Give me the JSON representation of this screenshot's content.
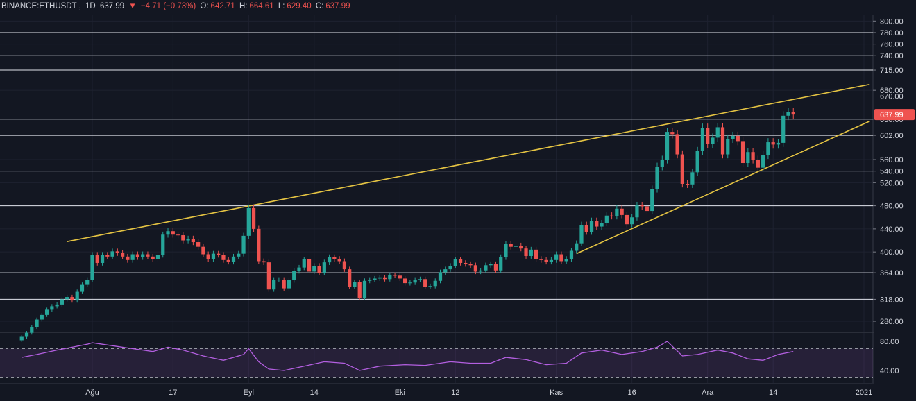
{
  "legend": {
    "symbol": "BINANCE:ETHUSDT",
    "interval": "1D",
    "last": "637.99",
    "change_icon": "down-triangle-icon",
    "change": "−4.71 (−0.73%)",
    "o_label": "O:",
    "o": "642.71",
    "h_label": "H:",
    "h": "664.61",
    "l_label": "L:",
    "l": "629.40",
    "c_label": "C:",
    "c": "637.99"
  },
  "colors": {
    "background": "#131722",
    "up": "#26a69a",
    "down": "#ef5350",
    "trendline": "#e5c443",
    "level_line": "#e0e3eb",
    "rsi": "#b35fe0"
  },
  "chart_data": [
    {
      "type": "candlestick",
      "symbol": "BINANCE:ETHUSDT",
      "interval": "1D",
      "price_axis": {
        "ticks": [
          280,
          318,
          364,
          400,
          440,
          480,
          520,
          540,
          560,
          602,
          630,
          670,
          680,
          715,
          740,
          760,
          780,
          800
        ],
        "tick_labels": [
          "280.00",
          "318.00",
          "364.00",
          "400.00",
          "440.00",
          "480.00",
          "520.00",
          "540.00",
          "560.00",
          "602.00",
          "630.00",
          "670.00",
          "680.00",
          "715.00",
          "740.00",
          "760.00",
          "780.00",
          "800.00"
        ],
        "range": [
          262,
          810
        ]
      },
      "x_axis": {
        "labels": [
          "Ağu",
          "17",
          "Eyl",
          "14",
          "Eki",
          "12",
          "Kas",
          "16",
          "Ara",
          "14",
          "2021"
        ],
        "dates": [
          "2020-08-01",
          "2020-08-17",
          "2020-09-01",
          "2020-09-14",
          "2020-10-01",
          "2020-10-12",
          "2020-11-01",
          "2020-11-16",
          "2020-12-01",
          "2020-12-14",
          "2021-01-01"
        ]
      },
      "horizontal_levels": [
        318,
        364,
        480,
        540,
        602,
        630,
        670,
        715,
        740,
        780
      ],
      "last_price_label": "637.99",
      "trendlines": [
        {
          "from": [
            "2020-07-27",
            418
          ],
          "to": [
            "2021-01-02",
            690
          ]
        },
        {
          "from": [
            "2020-11-05",
            397
          ],
          "to": [
            "2021-01-02",
            626
          ]
        }
      ],
      "close": [
        {
          "date": "2020-07-18",
          "value": 253
        },
        {
          "date": "2020-07-19",
          "value": 260
        },
        {
          "date": "2020-07-20",
          "value": 270
        },
        {
          "date": "2020-07-21",
          "value": 283
        },
        {
          "date": "2020-07-22",
          "value": 291
        },
        {
          "date": "2020-07-23",
          "value": 300
        },
        {
          "date": "2020-07-24",
          "value": 306
        },
        {
          "date": "2020-07-25",
          "value": 309
        },
        {
          "date": "2020-07-26",
          "value": 318
        },
        {
          "date": "2020-07-27",
          "value": 322
        },
        {
          "date": "2020-07-28",
          "value": 316
        },
        {
          "date": "2020-07-29",
          "value": 331
        },
        {
          "date": "2020-07-30",
          "value": 343
        },
        {
          "date": "2020-07-31",
          "value": 352
        },
        {
          "date": "2020-08-01",
          "value": 395
        },
        {
          "date": "2020-08-02",
          "value": 381
        },
        {
          "date": "2020-08-03",
          "value": 395
        },
        {
          "date": "2020-08-04",
          "value": 392
        },
        {
          "date": "2020-08-05",
          "value": 401
        },
        {
          "date": "2020-08-06",
          "value": 398
        },
        {
          "date": "2020-08-07",
          "value": 392
        },
        {
          "date": "2020-08-08",
          "value": 386
        },
        {
          "date": "2020-08-09",
          "value": 396
        },
        {
          "date": "2020-08-10",
          "value": 391
        },
        {
          "date": "2020-08-11",
          "value": 396
        },
        {
          "date": "2020-08-12",
          "value": 392
        },
        {
          "date": "2020-08-13",
          "value": 388
        },
        {
          "date": "2020-08-14",
          "value": 395
        },
        {
          "date": "2020-08-15",
          "value": 430
        },
        {
          "date": "2020-08-16",
          "value": 436
        },
        {
          "date": "2020-08-17",
          "value": 430
        },
        {
          "date": "2020-08-18",
          "value": 429
        },
        {
          "date": "2020-08-19",
          "value": 420
        },
        {
          "date": "2020-08-20",
          "value": 423
        },
        {
          "date": "2020-08-21",
          "value": 417
        },
        {
          "date": "2020-08-22",
          "value": 409
        },
        {
          "date": "2020-08-23",
          "value": 396
        },
        {
          "date": "2020-08-24",
          "value": 388
        },
        {
          "date": "2020-08-25",
          "value": 397
        },
        {
          "date": "2020-08-26",
          "value": 395
        },
        {
          "date": "2020-08-27",
          "value": 386
        },
        {
          "date": "2020-08-28",
          "value": 383
        },
        {
          "date": "2020-08-29",
          "value": 392
        },
        {
          "date": "2020-08-30",
          "value": 397
        },
        {
          "date": "2020-08-31",
          "value": 428
        },
        {
          "date": "2020-09-01",
          "value": 476
        },
        {
          "date": "2020-09-02",
          "value": 440
        },
        {
          "date": "2020-09-03",
          "value": 384
        },
        {
          "date": "2020-09-04",
          "value": 382
        },
        {
          "date": "2020-09-05",
          "value": 335
        },
        {
          "date": "2020-09-06",
          "value": 352
        },
        {
          "date": "2020-09-07",
          "value": 352
        },
        {
          "date": "2020-09-08",
          "value": 337
        },
        {
          "date": "2020-09-09",
          "value": 351
        },
        {
          "date": "2020-09-10",
          "value": 367
        },
        {
          "date": "2020-09-11",
          "value": 373
        },
        {
          "date": "2020-09-12",
          "value": 387
        },
        {
          "date": "2020-09-13",
          "value": 366
        },
        {
          "date": "2020-09-14",
          "value": 376
        },
        {
          "date": "2020-09-15",
          "value": 364
        },
        {
          "date": "2020-09-16",
          "value": 382
        },
        {
          "date": "2020-09-17",
          "value": 391
        },
        {
          "date": "2020-09-18",
          "value": 388
        },
        {
          "date": "2020-09-19",
          "value": 384
        },
        {
          "date": "2020-09-20",
          "value": 370
        },
        {
          "date": "2020-09-21",
          "value": 340
        },
        {
          "date": "2020-09-22",
          "value": 348
        },
        {
          "date": "2020-09-23",
          "value": 320
        },
        {
          "date": "2020-09-24",
          "value": 350
        },
        {
          "date": "2020-09-25",
          "value": 352
        },
        {
          "date": "2020-09-26",
          "value": 354
        },
        {
          "date": "2020-09-27",
          "value": 356
        },
        {
          "date": "2020-09-28",
          "value": 353
        },
        {
          "date": "2020-09-29",
          "value": 360
        },
        {
          "date": "2020-09-30",
          "value": 359
        },
        {
          "date": "2020-10-01",
          "value": 354
        },
        {
          "date": "2020-10-02",
          "value": 346
        },
        {
          "date": "2020-10-03",
          "value": 347
        },
        {
          "date": "2020-10-04",
          "value": 352
        },
        {
          "date": "2020-10-05",
          "value": 353
        },
        {
          "date": "2020-10-06",
          "value": 340
        },
        {
          "date": "2020-10-07",
          "value": 341
        },
        {
          "date": "2020-10-08",
          "value": 350
        },
        {
          "date": "2020-10-09",
          "value": 365
        },
        {
          "date": "2020-10-10",
          "value": 370
        },
        {
          "date": "2020-10-11",
          "value": 376
        },
        {
          "date": "2020-10-12",
          "value": 387
        },
        {
          "date": "2020-10-13",
          "value": 381
        },
        {
          "date": "2020-10-14",
          "value": 379
        },
        {
          "date": "2020-10-15",
          "value": 377
        },
        {
          "date": "2020-10-16",
          "value": 366
        },
        {
          "date": "2020-10-17",
          "value": 368
        },
        {
          "date": "2020-10-18",
          "value": 377
        },
        {
          "date": "2020-10-19",
          "value": 379
        },
        {
          "date": "2020-10-20",
          "value": 368
        },
        {
          "date": "2020-10-21",
          "value": 391
        },
        {
          "date": "2020-10-22",
          "value": 414
        },
        {
          "date": "2020-10-23",
          "value": 409
        },
        {
          "date": "2020-10-24",
          "value": 411
        },
        {
          "date": "2020-10-25",
          "value": 406
        },
        {
          "date": "2020-10-26",
          "value": 393
        },
        {
          "date": "2020-10-27",
          "value": 404
        },
        {
          "date": "2020-10-28",
          "value": 388
        },
        {
          "date": "2020-10-29",
          "value": 386
        },
        {
          "date": "2020-10-30",
          "value": 383
        },
        {
          "date": "2020-10-31",
          "value": 386
        },
        {
          "date": "2020-11-01",
          "value": 396
        },
        {
          "date": "2020-11-02",
          "value": 384
        },
        {
          "date": "2020-11-03",
          "value": 388
        },
        {
          "date": "2020-11-04",
          "value": 402
        },
        {
          "date": "2020-11-05",
          "value": 415
        },
        {
          "date": "2020-11-06",
          "value": 447
        },
        {
          "date": "2020-11-07",
          "value": 435
        },
        {
          "date": "2020-11-08",
          "value": 454
        },
        {
          "date": "2020-11-09",
          "value": 444
        },
        {
          "date": "2020-11-10",
          "value": 450
        },
        {
          "date": "2020-11-11",
          "value": 463
        },
        {
          "date": "2020-11-12",
          "value": 462
        },
        {
          "date": "2020-11-13",
          "value": 475
        },
        {
          "date": "2020-11-14",
          "value": 464
        },
        {
          "date": "2020-11-15",
          "value": 448
        },
        {
          "date": "2020-11-16",
          "value": 460
        },
        {
          "date": "2020-11-17",
          "value": 481
        },
        {
          "date": "2020-11-18",
          "value": 479
        },
        {
          "date": "2020-11-19",
          "value": 471
        },
        {
          "date": "2020-11-20",
          "value": 509
        },
        {
          "date": "2020-11-21",
          "value": 548
        },
        {
          "date": "2020-11-22",
          "value": 560
        },
        {
          "date": "2020-11-23",
          "value": 608
        },
        {
          "date": "2020-11-24",
          "value": 604
        },
        {
          "date": "2020-11-25",
          "value": 569
        },
        {
          "date": "2020-11-26",
          "value": 518
        },
        {
          "date": "2020-11-27",
          "value": 517
        },
        {
          "date": "2020-11-28",
          "value": 538
        },
        {
          "date": "2020-11-29",
          "value": 575
        },
        {
          "date": "2020-11-30",
          "value": 615
        },
        {
          "date": "2020-12-01",
          "value": 587
        },
        {
          "date": "2020-12-02",
          "value": 598
        },
        {
          "date": "2020-12-03",
          "value": 616
        },
        {
          "date": "2020-12-04",
          "value": 569
        },
        {
          "date": "2020-12-05",
          "value": 596
        },
        {
          "date": "2020-12-06",
          "value": 601
        },
        {
          "date": "2020-12-07",
          "value": 592
        },
        {
          "date": "2020-12-08",
          "value": 554
        },
        {
          "date": "2020-12-09",
          "value": 573
        },
        {
          "date": "2020-12-10",
          "value": 560
        },
        {
          "date": "2020-12-11",
          "value": 546
        },
        {
          "date": "2020-12-12",
          "value": 568
        },
        {
          "date": "2020-12-13",
          "value": 590
        },
        {
          "date": "2020-12-14",
          "value": 586
        },
        {
          "date": "2020-12-15",
          "value": 589
        },
        {
          "date": "2020-12-16",
          "value": 636
        },
        {
          "date": "2020-12-17",
          "value": 642
        },
        {
          "date": "2020-12-18",
          "value": 637.99
        }
      ]
    },
    {
      "type": "line",
      "indicator": "RSI",
      "y_ticks": [
        40,
        80
      ],
      "y_tick_labels": [
        "40.00",
        "80.00"
      ],
      "bands": [
        30,
        70
      ],
      "x": [
        "2020-07-18",
        "2020-07-21",
        "2020-07-25",
        "2020-07-28",
        "2020-07-31",
        "2020-08-01",
        "2020-08-05",
        "2020-08-09",
        "2020-08-13",
        "2020-08-16",
        "2020-08-19",
        "2020-08-23",
        "2020-08-27",
        "2020-08-31",
        "2020-09-01",
        "2020-09-03",
        "2020-09-05",
        "2020-09-08",
        "2020-09-12",
        "2020-09-16",
        "2020-09-20",
        "2020-09-23",
        "2020-09-27",
        "2020-10-02",
        "2020-10-06",
        "2020-10-11",
        "2020-10-15",
        "2020-10-19",
        "2020-10-22",
        "2020-10-26",
        "2020-10-30",
        "2020-11-03",
        "2020-11-06",
        "2020-11-10",
        "2020-11-14",
        "2020-11-18",
        "2020-11-21",
        "2020-11-23",
        "2020-11-26",
        "2020-11-29",
        "2020-12-03",
        "2020-12-06",
        "2020-12-09",
        "2020-12-12",
        "2020-12-15",
        "2020-12-18"
      ],
      "values": [
        58,
        62,
        68,
        72,
        76,
        78,
        74,
        70,
        66,
        72,
        68,
        60,
        54,
        62,
        70,
        52,
        42,
        40,
        46,
        52,
        50,
        40,
        46,
        48,
        47,
        52,
        50,
        50,
        58,
        55,
        48,
        50,
        64,
        68,
        62,
        66,
        72,
        80,
        60,
        62,
        68,
        64,
        56,
        54,
        62,
        66
      ]
    }
  ]
}
